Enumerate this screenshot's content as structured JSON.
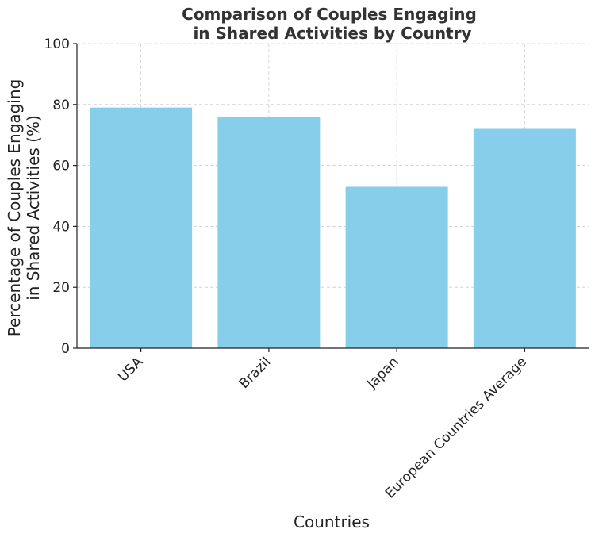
{
  "chart_data": {
    "type": "bar",
    "title_lines": [
      "Comparison of Couples Engaging",
      "in Shared Activities by Country"
    ],
    "xlabel": "Countries",
    "ylabel_lines": [
      "Percentage of Couples Engaging",
      "in Shared Activities (%)"
    ],
    "categories": [
      "USA",
      "Brazil",
      "Japan",
      "European Countries Average"
    ],
    "values": [
      79,
      76,
      53,
      72
    ],
    "ylim": [
      0,
      100
    ],
    "yticks": [
      0,
      20,
      40,
      60,
      80,
      100
    ],
    "grid": true,
    "bar_color": "#87ceeb"
  }
}
